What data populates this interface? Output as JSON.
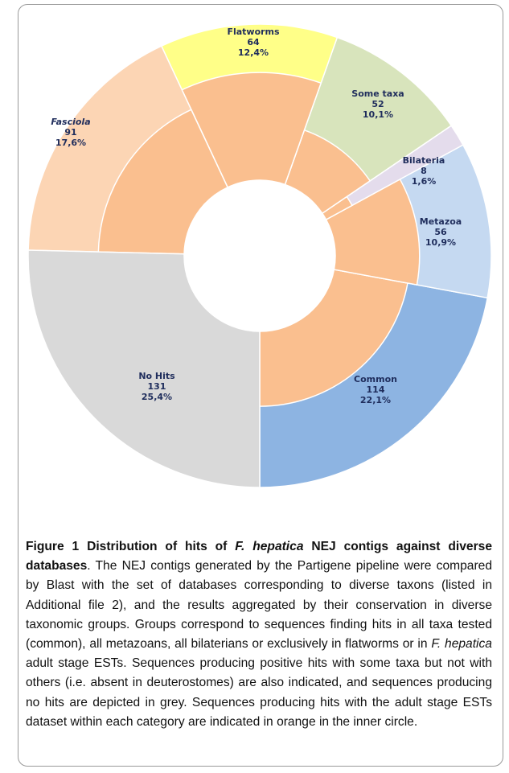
{
  "chart_data": {
    "type": "donut",
    "categories": [
      "Common",
      "Metazoa",
      "Bilateria",
      "Some taxa",
      "Flatworms",
      "Fasciola",
      "No Hits"
    ],
    "values": [
      114,
      56,
      8,
      52,
      64,
      91,
      131
    ],
    "percents": [
      22.1,
      10.9,
      1.6,
      10.1,
      12.4,
      17.6,
      25.4
    ],
    "percent_labels": [
      "22,1%",
      "10,9%",
      "1,6%",
      "10,1%",
      "12,4%",
      "17,6%",
      "25,4%"
    ],
    "colors": [
      "#8db4e2",
      "#c5d9f1",
      "#e4dcec",
      "#d8e4bc",
      "#ffff88",
      "#fcd5b4",
      "#d9d9d9"
    ],
    "inner_share": [
      48,
      54,
      19,
      37,
      69,
      55,
      0
    ],
    "inner_color": "#fabf8f"
  },
  "caption": {
    "title": [
      {
        "text": "Figure 1 Distribution of hits of ",
        "italic": false
      },
      {
        "text": "F. hepatica",
        "italic": true
      },
      {
        "text": " NEJ contigs against diverse databases",
        "italic": false
      }
    ],
    "body": [
      {
        "text": ". The NEJ contigs generated by the Partigene pipeline were compared by Blast with the set of databases corresponding to diverse taxons (listed in Additional file 2), and the results aggregated by their conservation in diverse taxonomic groups. Groups correspond to sequences finding hits in all taxa tested (common), all metazoans, all bilaterians or exclusively in flatworms or in ",
        "italic": false
      },
      {
        "text": "F. hepatica",
        "italic": true
      },
      {
        "text": " adult stage ESTs. Sequences producing positive hits with some taxa but not with others (i.e. absent in deuterostomes) are also indicated, and sequences producing no hits are depicted in grey. Sequences producing hits with the adult stage ESTs dataset within each category are indicated in orange in the inner circle.",
        "italic": false
      }
    ]
  }
}
